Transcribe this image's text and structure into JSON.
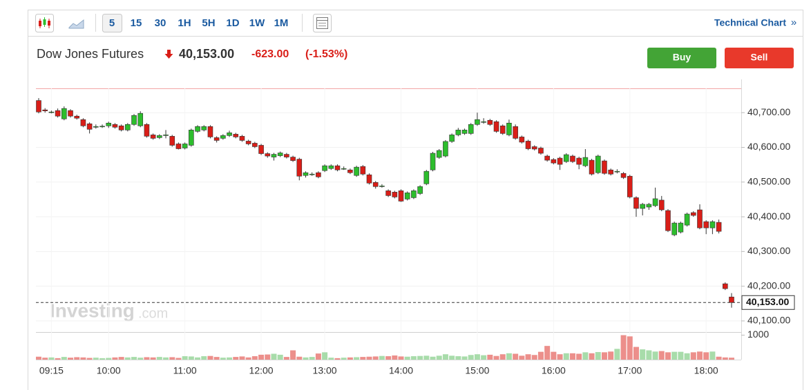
{
  "toolbar": {
    "intervals": [
      "5",
      "15",
      "30",
      "1H",
      "5H",
      "1D",
      "1W",
      "1M"
    ],
    "link": "Technical Chart",
    "link_arrow": "»"
  },
  "header": {
    "name": "Dow Jones Futures",
    "price": "40,153.00",
    "change": "-623.00",
    "change_pct": "(-1.53%)",
    "buy": "Buy",
    "sell": "Sell"
  },
  "chart_data": {
    "type": "candlestick",
    "watermark": "Investing",
    "watermark_suffix": ".com",
    "up_color": "#2dbd2d",
    "down_color": "#d91e18",
    "volume_up_color": "#a8dcaa",
    "volume_down_color": "#ec8f8b",
    "categories": [
      null,
      null,
      "09:15",
      null,
      null,
      null,
      null,
      null,
      null,
      null,
      null,
      "10:00",
      null,
      null,
      null,
      null,
      null,
      null,
      null,
      null,
      null,
      null,
      null,
      "11:00",
      null,
      null,
      null,
      null,
      null,
      null,
      null,
      null,
      null,
      null,
      null,
      "12:00",
      null,
      null,
      null,
      null,
      null,
      null,
      null,
      null,
      null,
      "13:00",
      null,
      null,
      null,
      null,
      null,
      null,
      null,
      null,
      null,
      null,
      null,
      "14:00",
      null,
      null,
      null,
      null,
      null,
      null,
      null,
      null,
      null,
      null,
      null,
      "15:00",
      null,
      null,
      null,
      null,
      null,
      null,
      null,
      null,
      null,
      null,
      null,
      "16:00",
      null,
      null,
      null,
      null,
      null,
      null,
      null,
      null,
      null,
      null,
      null,
      "17:00",
      null,
      null,
      null,
      null,
      null,
      null,
      null,
      null,
      null,
      null,
      null,
      "18:00",
      null,
      null,
      null,
      null
    ],
    "open": [
      40735,
      40708,
      40702,
      40706,
      40682,
      40706,
      40690,
      40680,
      40668,
      40660,
      40660,
      40662,
      40666,
      40662,
      40650,
      40666,
      40662,
      40666,
      40636,
      40628,
      40636,
      40632,
      40610,
      40598,
      40606,
      40646,
      40650,
      40660,
      40628,
      40626,
      40634,
      40638,
      40632,
      40618,
      40612,
      40606,
      40582,
      40572,
      40576,
      40580,
      40572,
      40566,
      40519,
      40523,
      40527,
      40533,
      40539,
      40547,
      40539,
      40535,
      40519,
      40545,
      40521,
      40499,
      40489,
      40475,
      40471,
      40475,
      40451,
      40455,
      40467,
      40495,
      40535,
      40571,
      40575,
      40617,
      40636,
      40640,
      40640,
      40666,
      40674,
      40678,
      40674,
      40662,
      40636,
      40660,
      40630,
      40618,
      40602,
      40598,
      40575,
      40565,
      40569,
      40559,
      40575,
      40569,
      40547,
      40563,
      40527,
      40561,
      40535,
      40531,
      40525,
      40517,
      40455,
      40424,
      40428,
      40432,
      40448,
      40418,
      40348,
      40356,
      40376,
      40412,
      40420,
      40386,
      40368,
      40384,
      40207,
      40169
    ],
    "high": [
      40742,
      40713,
      40706,
      40712,
      40718,
      40710,
      40694,
      40684,
      40672,
      40666,
      40666,
      40674,
      40670,
      40666,
      40670,
      40696,
      40704,
      40670,
      40640,
      40638,
      40650,
      40636,
      40614,
      40614,
      40654,
      40664,
      40664,
      40664,
      40632,
      40638,
      40648,
      40642,
      40636,
      40622,
      40616,
      40610,
      40586,
      40584,
      40588,
      40584,
      40576,
      40570,
      40531,
      40528,
      40531,
      40551,
      40551,
      40551,
      40545,
      40539,
      40547,
      40549,
      40525,
      40503,
      40494,
      40479,
      40475,
      40479,
      40473,
      40479,
      40491,
      40535,
      40587,
      40595,
      40621,
      40640,
      40656,
      40654,
      40670,
      40700,
      40684,
      40682,
      40678,
      40666,
      40680,
      40666,
      40634,
      40622,
      40606,
      40602,
      40579,
      40569,
      40573,
      40583,
      40579,
      40573,
      40595,
      40567,
      40579,
      40565,
      40539,
      40537,
      40529,
      40521,
      40459,
      40440,
      40440,
      40484,
      40460,
      40422,
      40386,
      40386,
      40412,
      40416,
      40436,
      40390,
      40390,
      40392,
      40211,
      40180
    ],
    "low": [
      40698,
      40700,
      40698,
      40686,
      40678,
      40686,
      40680,
      40658,
      40640,
      40654,
      40656,
      40656,
      40654,
      40646,
      40646,
      40662,
      40658,
      40628,
      40622,
      40624,
      40626,
      40602,
      40594,
      40594,
      40602,
      40642,
      40646,
      40626,
      40614,
      40622,
      40630,
      40626,
      40616,
      40606,
      40598,
      40578,
      40570,
      40562,
      40572,
      40568,
      40558,
      40505,
      40513,
      40518,
      40511,
      40529,
      40535,
      40531,
      40535,
      40523,
      40515,
      40519,
      40493,
      40481,
      40484,
      40457,
      40453,
      40443,
      40447,
      40451,
      40463,
      40491,
      40531,
      40567,
      40571,
      40613,
      40632,
      40636,
      40636,
      40662,
      40668,
      40662,
      40642,
      40636,
      40632,
      40622,
      40611,
      40592,
      40591,
      40579,
      40559,
      40551,
      40535,
      40555,
      40555,
      40537,
      40543,
      40519,
      40523,
      40521,
      40519,
      40525,
      40509,
      40453,
      40400,
      40404,
      40420,
      40428,
      40416,
      40356,
      40344,
      40352,
      40372,
      40400,
      40364,
      40350,
      40350,
      40352,
      40189,
      40138
    ],
    "close": [
      40702,
      40705,
      40702,
      40690,
      40712,
      40690,
      40684,
      40662,
      40652,
      40660,
      40661,
      40670,
      40658,
      40650,
      40666,
      40692,
      40698,
      40632,
      40626,
      40634,
      40636,
      40606,
      40596,
      40610,
      40650,
      40660,
      40660,
      40630,
      40620,
      40634,
      40642,
      40630,
      40620,
      40610,
      40602,
      40582,
      40575,
      40580,
      40584,
      40572,
      40562,
      40517,
      40527,
      40523,
      40515,
      40547,
      40547,
      40535,
      40539,
      40527,
      40543,
      40523,
      40497,
      40487,
      40489,
      40461,
      40457,
      40445,
      40469,
      40475,
      40487,
      40531,
      40583,
      40591,
      40617,
      40636,
      40650,
      40650,
      40666,
      40680,
      40674,
      40666,
      40646,
      40640,
      40670,
      40626,
      40615,
      40596,
      40595,
      40583,
      40563,
      40555,
      40551,
      40579,
      40559,
      40551,
      40571,
      40523,
      40575,
      40525,
      40523,
      40531,
      40513,
      40457,
      40424,
      40436,
      40436,
      40452,
      40420,
      40360,
      40382,
      40382,
      40408,
      40404,
      40368,
      40368,
      40386,
      40358,
      40193,
      40153
    ],
    "ylim": [
      40070,
      40770
    ],
    "yticks": [
      {
        "value": 40100,
        "label": "40,100.00"
      },
      {
        "value": 40200,
        "label": "40,200.00"
      },
      {
        "value": 40300,
        "label": "40,300.00"
      },
      {
        "value": 40400,
        "label": "40,400.00"
      },
      {
        "value": 40500,
        "label": "40,500.00"
      },
      {
        "value": 40600,
        "label": "40,600.00"
      },
      {
        "value": 40700,
        "label": "40,700.00"
      }
    ],
    "last_price": {
      "value": 40153,
      "label": "40,153.00"
    },
    "volume": {
      "values": [
        120,
        80,
        90,
        60,
        110,
        80,
        100,
        90,
        70,
        80,
        60,
        70,
        90,
        110,
        90,
        110,
        80,
        100,
        90,
        110,
        90,
        100,
        70,
        140,
        130,
        90,
        140,
        150,
        110,
        80,
        90,
        110,
        130,
        90,
        140,
        200,
        210,
        240,
        200,
        110,
        380,
        120,
        90,
        110,
        250,
        300,
        80,
        60,
        80,
        90,
        100,
        110,
        120,
        130,
        150,
        140,
        170,
        130,
        120,
        140,
        150,
        160,
        120,
        160,
        220,
        160,
        140,
        130,
        190,
        220,
        180,
        200,
        150,
        220,
        260,
        240,
        160,
        220,
        190,
        320,
        560,
        320,
        220,
        260,
        260,
        240,
        300,
        260,
        310,
        300,
        330,
        440,
        1000,
        950,
        520,
        420,
        380,
        330,
        350,
        300,
        320,
        320,
        260,
        300,
        330,
        300,
        330,
        120,
        90,
        80
      ],
      "ylim": [
        0,
        1100
      ],
      "yticks": [
        1000
      ]
    }
  }
}
